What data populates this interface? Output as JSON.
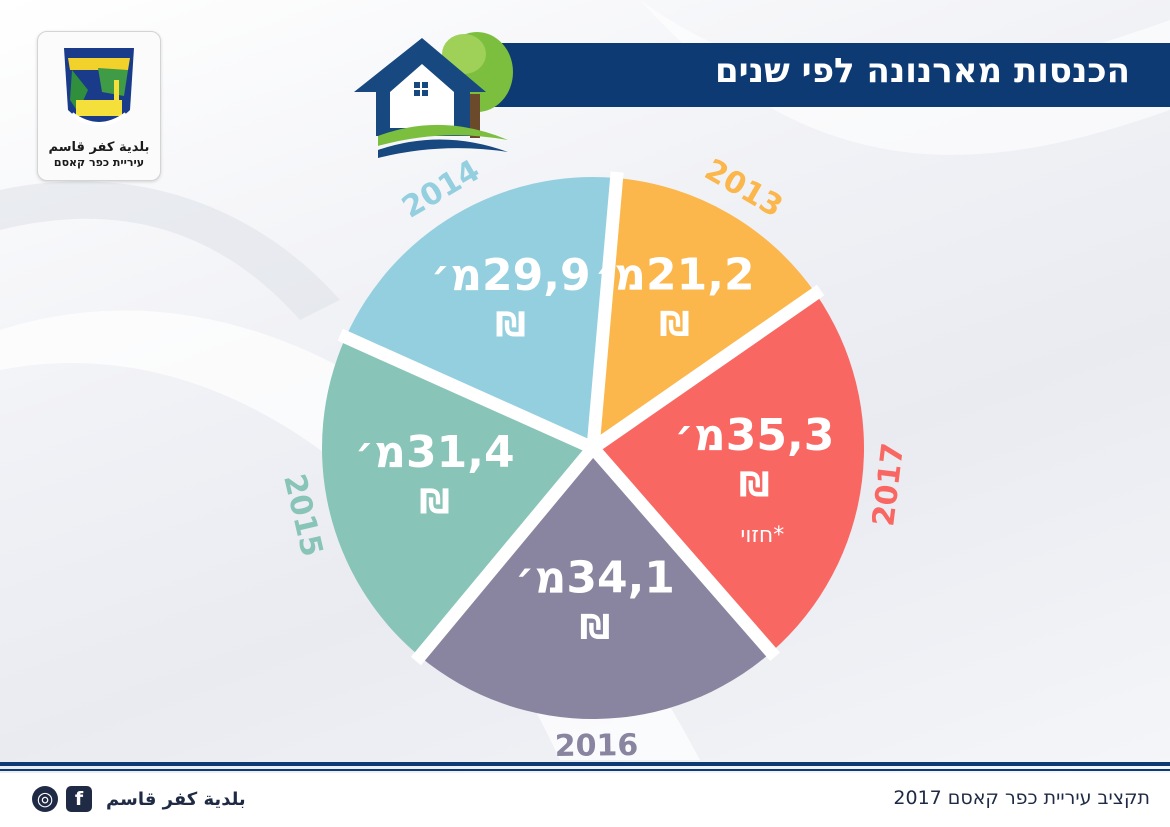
{
  "header": {
    "title": "הכנסות מארנונה לפי שנים"
  },
  "logo": {
    "arabic_name": "بلدية كفر قاسم",
    "hebrew_name": "עיריית כפר קאסם"
  },
  "footer": {
    "budget_text": "תקציב עיריית כפר קאסם 2017",
    "org_name": "بلدية كفر قاسم",
    "facebook_icon": "f"
  },
  "colors": {
    "title_bar": "#0e3a74",
    "text_dark": "#1f2a44"
  },
  "chart_data": {
    "type": "pie",
    "currency_symbol": "₪",
    "unit_suffix": "מ׳",
    "slices": [
      {
        "year": "2013",
        "value": 21.2,
        "value_label": "21,2",
        "color": "#fbb64c",
        "note": ""
      },
      {
        "year": "2017",
        "value": 35.3,
        "value_label": "35,3",
        "color": "#f96763",
        "note": "*חזוי"
      },
      {
        "year": "2016",
        "value": 34.1,
        "value_label": "34,1",
        "color": "#89849f",
        "note": ""
      },
      {
        "year": "2015",
        "value": 31.4,
        "value_label": "31,4",
        "color": "#88c4b8",
        "note": ""
      },
      {
        "year": "2014",
        "value": 29.9,
        "value_label": "29,9",
        "color": "#94cfe0",
        "note": ""
      }
    ]
  }
}
